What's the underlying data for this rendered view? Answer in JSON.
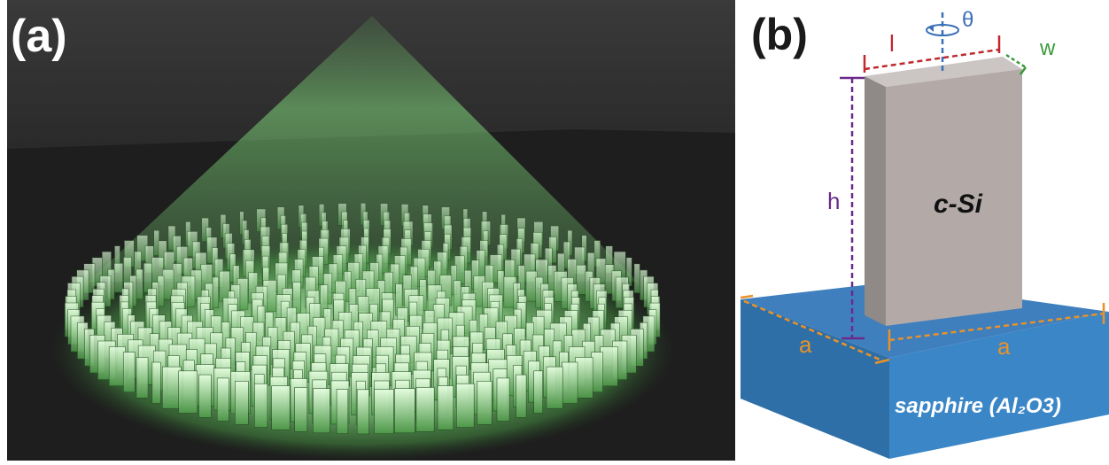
{
  "panel_a": {
    "label": "(a)",
    "colors": {
      "background": "#2b2b2b",
      "floor": "#1f1f1f",
      "glow": "#7fd67a",
      "pillar": "#a9dba4"
    }
  },
  "panel_b": {
    "label": "(b)",
    "pillar_label": "c-Si",
    "substrate_label": "sapphire (Al₂O3)",
    "dim_length": "l",
    "dim_width": "w",
    "dim_height": "h",
    "dim_rotation": "θ",
    "dim_period_left": "a",
    "dim_period_right": "a",
    "colors": {
      "pillar_front": "#b3aaa8",
      "pillar_side": "#8f8a88",
      "pillar_top": "#cbc5c3",
      "substrate_top": "#3f7fbd",
      "substrate_front": "#3a86c6",
      "substrate_side": "#2f6fa8",
      "length_line": "#c0282d",
      "width_line": "#3a9a3a",
      "height_line": "#6a2a8a",
      "rotation_line": "#3a6fb5",
      "period_line": "#e8922a"
    }
  }
}
